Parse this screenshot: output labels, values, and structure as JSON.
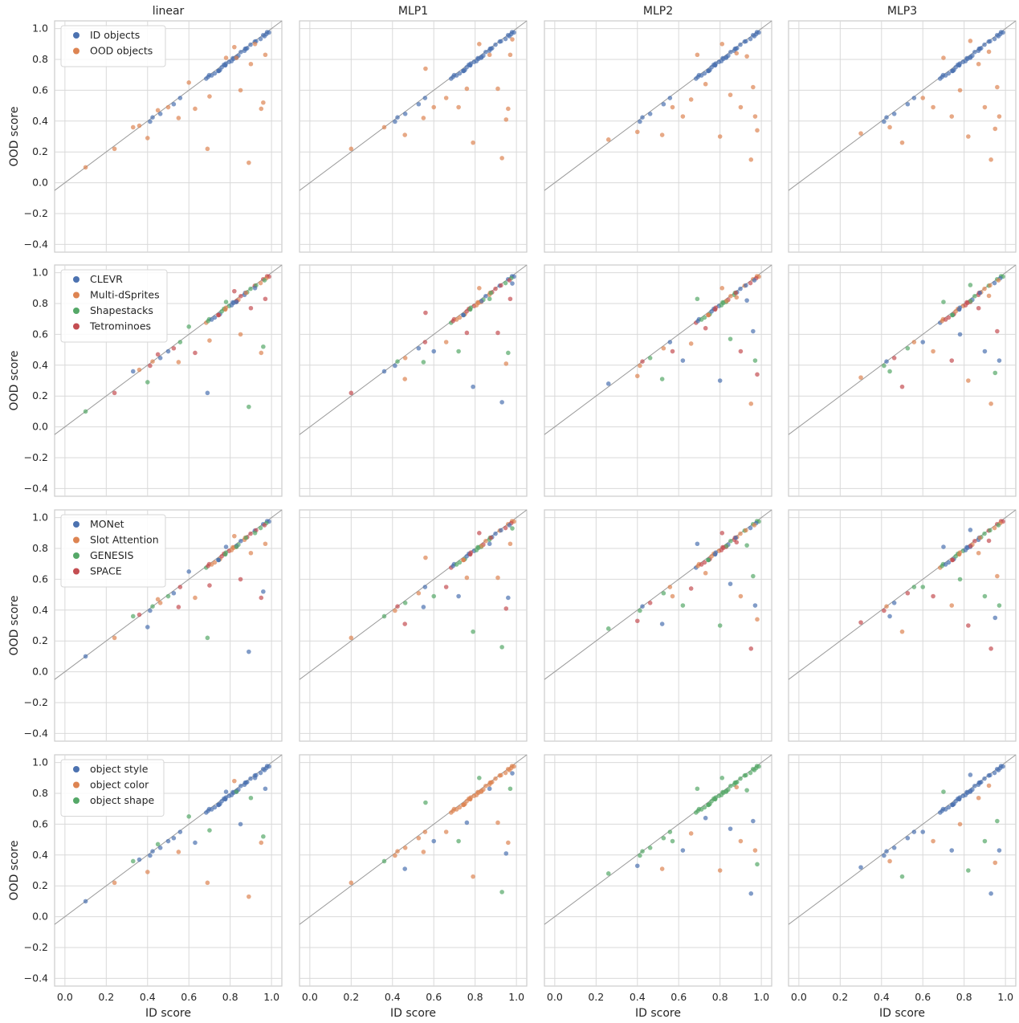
{
  "figure": {
    "column_titles": [
      "linear",
      "MLP1",
      "MLP2",
      "MLP3"
    ],
    "xlabel": "ID score",
    "ylabel": "OOD score",
    "x_ticks": [
      "0.0",
      "0.2",
      "0.4",
      "0.6",
      "0.8",
      "1.0"
    ],
    "y_ticks": [
      "−0.4",
      "−0.2",
      "0.0",
      "0.2",
      "0.4",
      "0.6",
      "0.8",
      "1.0"
    ]
  },
  "chart_data": {
    "type": "scatter",
    "layout": "4x4 grid of scatter panels (rows = grouping, columns = readout model)",
    "xlim": [
      -0.05,
      1.05
    ],
    "ylim": [
      -0.45,
      1.05
    ],
    "x_ticks": [
      0.0,
      0.2,
      0.4,
      0.6,
      0.8,
      1.0
    ],
    "y_ticks": [
      -0.4,
      -0.2,
      0.0,
      0.2,
      0.4,
      0.6,
      0.8,
      1.0
    ],
    "grid": true,
    "reference_line": "y = x",
    "legend_placement": "upper-left of first column",
    "columns": [
      "linear",
      "MLP1",
      "MLP2",
      "MLP3"
    ],
    "palette": [
      "#4c72b0",
      "#dd8452",
      "#55a868",
      "#c44e52"
    ],
    "rows": [
      {
        "legend": [
          "ID objects",
          "OOD objects"
        ]
      },
      {
        "legend": [
          "CLEVR",
          "Multi-dSprites",
          "Shapestacks",
          "Tetrominoes"
        ]
      },
      {
        "legend": [
          "MONet",
          "Slot Attention",
          "GENESIS",
          "SPACE"
        ]
      },
      {
        "legend": [
          "object style",
          "object color",
          "object shape"
        ]
      }
    ],
    "panels": [
      {
        "ood_points": [
          [
            0.1,
            0.1
          ],
          [
            0.24,
            0.22
          ],
          [
            0.33,
            0.36
          ],
          [
            0.36,
            0.37
          ],
          [
            0.4,
            0.29
          ],
          [
            0.45,
            0.47
          ],
          [
            0.5,
            0.49
          ],
          [
            0.55,
            0.42
          ],
          [
            0.6,
            0.65
          ],
          [
            0.63,
            0.48
          ],
          [
            0.69,
            0.22
          ],
          [
            0.7,
            0.56
          ],
          [
            0.78,
            0.81
          ],
          [
            0.82,
            0.88
          ],
          [
            0.83,
            0.81
          ],
          [
            0.85,
            0.6
          ],
          [
            0.89,
            0.13
          ],
          [
            0.9,
            0.77
          ],
          [
            0.92,
            0.9
          ],
          [
            0.95,
            0.48
          ],
          [
            0.96,
            0.52
          ],
          [
            0.97,
            0.83
          ]
        ]
      },
      {
        "ood_points": [
          [
            0.2,
            0.22
          ],
          [
            0.36,
            0.36
          ],
          [
            0.46,
            0.31
          ],
          [
            0.55,
            0.42
          ],
          [
            0.56,
            0.74
          ],
          [
            0.6,
            0.49
          ],
          [
            0.66,
            0.55
          ],
          [
            0.72,
            0.49
          ],
          [
            0.76,
            0.61
          ],
          [
            0.79,
            0.26
          ],
          [
            0.82,
            0.9
          ],
          [
            0.87,
            0.83
          ],
          [
            0.91,
            0.61
          ],
          [
            0.93,
            0.16
          ],
          [
            0.95,
            0.41
          ],
          [
            0.96,
            0.48
          ],
          [
            0.97,
            0.83
          ],
          [
            0.98,
            0.93
          ]
        ]
      },
      {
        "ood_points": [
          [
            0.26,
            0.28
          ],
          [
            0.4,
            0.33
          ],
          [
            0.52,
            0.31
          ],
          [
            0.57,
            0.49
          ],
          [
            0.62,
            0.43
          ],
          [
            0.66,
            0.54
          ],
          [
            0.69,
            0.83
          ],
          [
            0.73,
            0.64
          ],
          [
            0.8,
            0.3
          ],
          [
            0.81,
            0.9
          ],
          [
            0.85,
            0.57
          ],
          [
            0.9,
            0.49
          ],
          [
            0.93,
            0.82
          ],
          [
            0.95,
            0.15
          ],
          [
            0.97,
            0.43
          ],
          [
            0.98,
            0.34
          ],
          [
            0.96,
            0.62
          ],
          [
            0.88,
            0.84
          ]
        ]
      },
      {
        "ood_points": [
          [
            0.3,
            0.32
          ],
          [
            0.44,
            0.36
          ],
          [
            0.5,
            0.26
          ],
          [
            0.6,
            0.55
          ],
          [
            0.65,
            0.49
          ],
          [
            0.7,
            0.81
          ],
          [
            0.74,
            0.43
          ],
          [
            0.78,
            0.6
          ],
          [
            0.82,
            0.3
          ],
          [
            0.83,
            0.92
          ],
          [
            0.87,
            0.77
          ],
          [
            0.9,
            0.49
          ],
          [
            0.93,
            0.15
          ],
          [
            0.95,
            0.35
          ],
          [
            0.96,
            0.62
          ],
          [
            0.97,
            0.43
          ],
          [
            0.92,
            0.85
          ]
        ]
      }
    ]
  }
}
